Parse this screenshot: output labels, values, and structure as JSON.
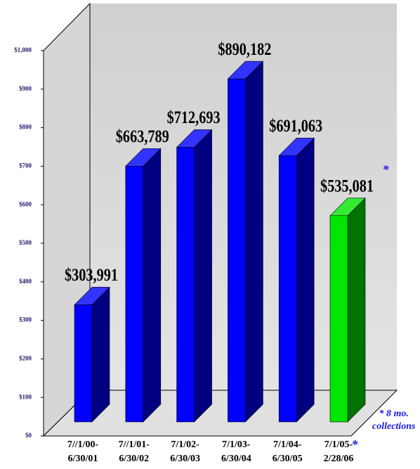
{
  "chart_data": {
    "type": "bar3d",
    "categories": [
      "7//1/00-\n6/30/01",
      "7//1/01-\n6/30/02",
      "7/1/02-\n6/30/03",
      "7/1/03-\n6/30/04",
      "7/1/04-\n6/30/05",
      "7/1/05-\n2/28/06"
    ],
    "values": [
      303.991,
      663.789,
      712.693,
      890.182,
      691.063,
      535.081
    ],
    "value_labels": [
      "$303,991",
      "$663,789",
      "$712,693",
      "$890,182",
      "$691,063",
      "$535,081"
    ],
    "colors": [
      "#0000ff",
      "#0000ff",
      "#0000ff",
      "#0000ff",
      "#0000ff",
      "#00e600"
    ],
    "ylim": [
      0,
      1000
    ],
    "yticks": [
      {
        "value": 0,
        "label": "$0"
      },
      {
        "value": 100,
        "label": "$100"
      },
      {
        "value": 200,
        "label": "$200"
      },
      {
        "value": 300,
        "label": "$300"
      },
      {
        "value": 400,
        "label": "$400"
      },
      {
        "value": 500,
        "label": "$500"
      },
      {
        "value": 600,
        "label": "$600"
      },
      {
        "value": 700,
        "label": "$700"
      },
      {
        "value": 800,
        "label": "$800"
      },
      {
        "value": 900,
        "label": "$900"
      },
      {
        "value": 1000,
        "label": "$1,000"
      }
    ],
    "annotations": [
      "*",
      "* 8 mo.\ncollections",
      "*"
    ]
  }
}
